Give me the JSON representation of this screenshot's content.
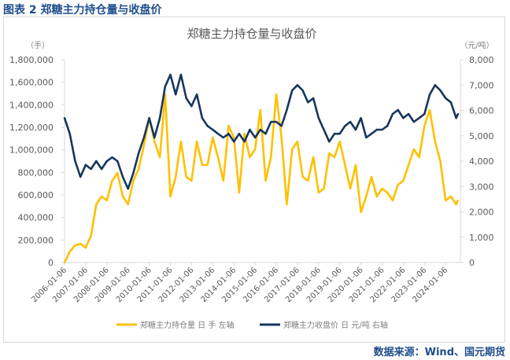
{
  "header": "图表 2  郑糖主力持仓量与收盘价",
  "source": "数据来源：Wind、国元期货",
  "chart_data": {
    "type": "line",
    "title": "郑糖主力持仓量与收盘价",
    "y_left_unit": "（手）",
    "y_right_unit": "（元/吨）",
    "ylim_left": [
      0,
      1800000
    ],
    "ylim_right": [
      0,
      8000
    ],
    "y_left_ticks": [
      "0",
      "200,000",
      "400,000",
      "600,000",
      "800,000",
      "1,000,000",
      "1,200,000",
      "1,400,000",
      "1,600,000",
      "1,800,000"
    ],
    "y_right_ticks": [
      "0",
      "1,000",
      "2,000",
      "3,000",
      "4,000",
      "5,000",
      "6,000",
      "7,000",
      "8,000"
    ],
    "x_ticks": [
      "2006-01-06",
      "2007-01-06",
      "2008-01-06",
      "2009-01-06",
      "2010-01-06",
      "2011-01-06",
      "2012-01-06",
      "2013-01-06",
      "2014-01-06",
      "2015-01-06",
      "2016-01-06",
      "2017-01-06",
      "2018-01-06",
      "2019-01-06",
      "2020-01-06",
      "2021-01-06",
      "2022-01-06",
      "2023-01-06",
      "2024-01-06"
    ],
    "grid": false,
    "legend": "bottom",
    "x": [
      "2006-01",
      "2006-04",
      "2006-07",
      "2006-10",
      "2007-01",
      "2007-04",
      "2007-07",
      "2007-10",
      "2008-01",
      "2008-04",
      "2008-07",
      "2008-10",
      "2009-01",
      "2009-04",
      "2009-07",
      "2009-10",
      "2010-01",
      "2010-04",
      "2010-07",
      "2010-10",
      "2011-01",
      "2011-04",
      "2011-07",
      "2011-10",
      "2012-01",
      "2012-04",
      "2012-07",
      "2012-10",
      "2013-01",
      "2013-04",
      "2013-07",
      "2013-10",
      "2014-01",
      "2014-04",
      "2014-07",
      "2014-10",
      "2015-01",
      "2015-04",
      "2015-07",
      "2015-10",
      "2016-01",
      "2016-04",
      "2016-07",
      "2016-10",
      "2017-01",
      "2017-04",
      "2017-07",
      "2017-10",
      "2018-01",
      "2018-04",
      "2018-07",
      "2018-10",
      "2019-01",
      "2019-04",
      "2019-07",
      "2019-10",
      "2020-01",
      "2020-04",
      "2020-07",
      "2020-10",
      "2021-01",
      "2021-04",
      "2021-07",
      "2021-10",
      "2022-01",
      "2022-04",
      "2022-07",
      "2022-10",
      "2023-01",
      "2023-04",
      "2023-07",
      "2023-10",
      "2024-01",
      "2024-04",
      "2024-07",
      "2024-08"
    ],
    "series": [
      {
        "name": "郑糖主力持仓量 日 手 左轴",
        "axis": "left",
        "color": "#ffc000",
        "values": [
          0,
          97000,
          153000,
          167000,
          132000,
          237000,
          516000,
          586000,
          551000,
          726000,
          795000,
          586000,
          516000,
          726000,
          830000,
          1040000,
          1284000,
          1074000,
          935000,
          1493000,
          586000,
          760000,
          1074000,
          760000,
          726000,
          1074000,
          865000,
          865000,
          1109000,
          935000,
          726000,
          1214000,
          1109000,
          621000,
          1144000,
          935000,
          1005000,
          1354000,
          726000,
          935000,
          1493000,
          1109000,
          516000,
          1005000,
          1074000,
          760000,
          726000,
          935000,
          621000,
          656000,
          970000,
          935000,
          1074000,
          865000,
          656000,
          865000,
          447000,
          586000,
          760000,
          586000,
          656000,
          621000,
          551000,
          690000,
          726000,
          865000,
          1005000,
          935000,
          1214000,
          1354000,
          1074000,
          900000,
          551000,
          586000,
          516000,
          551000
        ]
      },
      {
        "name": "郑糖主力收盘价 日 元/吨 右轴",
        "axis": "right",
        "color": "#17365d",
        "values": [
          5700,
          5080,
          4000,
          3380,
          3850,
          3690,
          4000,
          3690,
          4000,
          4150,
          4000,
          3380,
          2910,
          3530,
          4310,
          4930,
          5700,
          4930,
          5700,
          6940,
          7410,
          6630,
          7410,
          6480,
          6170,
          6630,
          5700,
          5390,
          5240,
          5080,
          4930,
          5080,
          4770,
          5080,
          4770,
          5240,
          4930,
          5240,
          5080,
          5550,
          5550,
          5390,
          6020,
          6790,
          7000,
          6790,
          6320,
          6480,
          5700,
          5240,
          4770,
          5080,
          5080,
          5390,
          5550,
          5240,
          5700,
          4930,
          5080,
          5240,
          5240,
          5390,
          5860,
          6020,
          5700,
          5860,
          5550,
          5700,
          5860,
          6630,
          7000,
          6790,
          6480,
          6320,
          5700,
          5860
        ]
      }
    ]
  }
}
